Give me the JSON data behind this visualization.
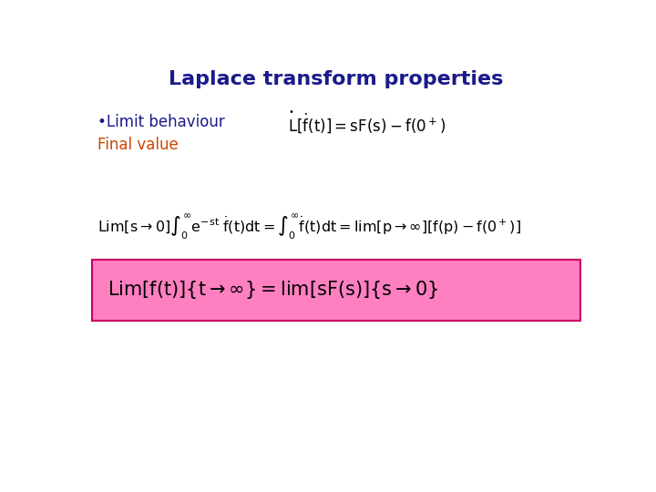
{
  "title": "Laplace transform properties",
  "title_color": "#1a1a8c",
  "title_fontsize": 16,
  "bg_color": "#ffffff",
  "bullet_label": "•Limit behaviour",
  "bullet_color": "#1a1a8c",
  "final_value_label": "Final value",
  "final_value_color": "#cc4400",
  "eq3_bg": "#ff80c0",
  "eq3_border": "#cc0066",
  "eq3_fontsize": 15,
  "eq2_fontsize": 11.5,
  "eq1_fontsize": 12,
  "label_fontsize": 12
}
